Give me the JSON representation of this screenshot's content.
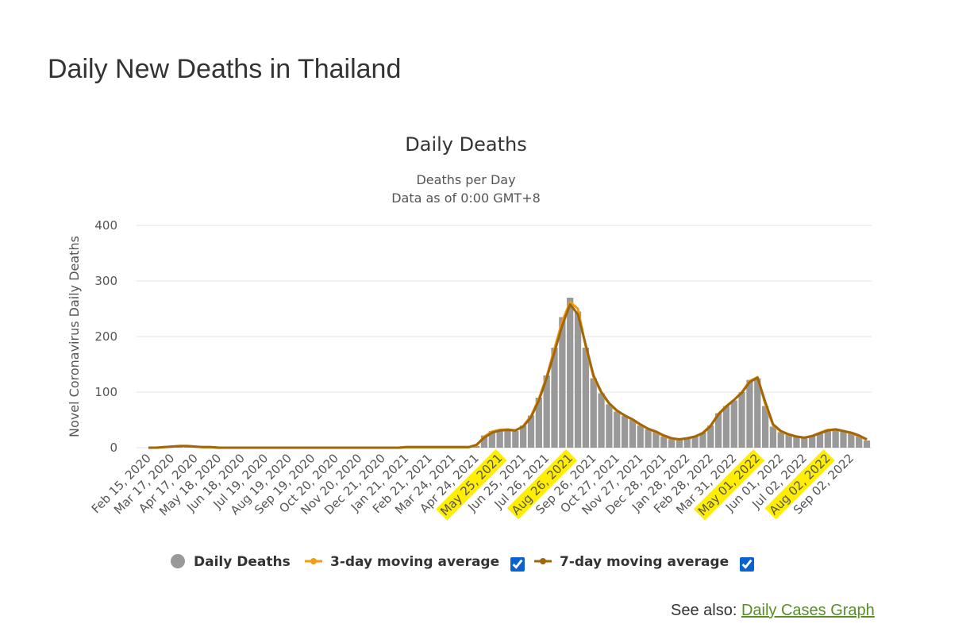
{
  "page_title": "Daily New Deaths in Thailand",
  "chart_data": {
    "type": "bar_line",
    "title": "Daily Deaths",
    "subtitle": [
      "Deaths per Day",
      "Data as of 0:00 GMT+8"
    ],
    "y_label": "Novel Coronavirus Daily Deaths",
    "categories": [
      "Feb 15, 2020",
      null,
      null,
      "Mar 17, 2020",
      null,
      null,
      "Apr 17, 2020",
      null,
      null,
      "May 18, 2020",
      null,
      null,
      "Jun 18, 2020",
      null,
      null,
      "Jul 19, 2020",
      null,
      null,
      "Aug 19, 2020",
      null,
      null,
      "Sep 19, 2020",
      null,
      null,
      "Oct 20, 2020",
      null,
      null,
      "Nov 20, 2020",
      null,
      null,
      "Dec 21, 2020",
      null,
      null,
      "Jan 21, 2021",
      null,
      null,
      "Feb 21, 2021",
      null,
      null,
      "Mar 24, 2021",
      null,
      null,
      "Apr 24, 2021",
      null,
      null,
      "May 25, 2021",
      null,
      null,
      "Jun 25, 2021",
      null,
      null,
      "Jul 26, 2021",
      null,
      null,
      "Aug 26, 2021",
      null,
      null,
      "Sep 26, 2021",
      null,
      null,
      "Oct 27, 2021",
      null,
      null,
      "Nov 27, 2021",
      null,
      null,
      "Dec 28, 2021",
      null,
      null,
      "Jan 28, 2022",
      null,
      null,
      "Feb 28, 2022",
      null,
      null,
      "Mar 31, 2022",
      null,
      null,
      "May 01, 2022",
      null,
      null,
      "Jun 01, 2022",
      null,
      null,
      "Jul 02, 2022",
      null,
      null,
      "Aug 02, 2022",
      null,
      null,
      "Sep 02, 2022",
      null,
      null
    ],
    "highlighted_categories": [
      "May 25, 2021",
      "Aug 26, 2021",
      "May 01, 2022",
      "Aug 02, 2022"
    ],
    "highlight_color": "#ffee00",
    "series": [
      {
        "name": "Daily Deaths",
        "kind": "bar",
        "color": "#999999",
        "values": [
          0,
          0,
          1,
          2,
          4,
          3,
          2,
          1,
          1,
          0,
          0,
          0,
          0,
          0,
          0,
          0,
          0,
          0,
          0,
          0,
          0,
          0,
          0,
          0,
          0,
          0,
          0,
          0,
          0,
          0,
          0,
          0,
          0,
          1,
          2,
          1,
          1,
          1,
          0,
          1,
          1,
          1,
          3,
          22,
          30,
          32,
          33,
          30,
          40,
          58,
          90,
          130,
          180,
          235,
          270,
          245,
          180,
          125,
          98,
          78,
          65,
          57,
          50,
          40,
          33,
          28,
          20,
          15,
          15,
          17,
          20,
          27,
          40,
          62,
          75,
          85,
          100,
          122,
          125,
          75,
          38,
          28,
          23,
          20,
          17,
          22,
          27,
          33,
          33,
          30,
          26,
          20,
          13
        ]
      },
      {
        "name": "3-day moving average",
        "kind": "line",
        "color": "#f39c12",
        "values": [
          0,
          0,
          1,
          2,
          3,
          3,
          2,
          1,
          1,
          0,
          0,
          0,
          0,
          0,
          0,
          0,
          0,
          0,
          0,
          0,
          0,
          0,
          0,
          0,
          0,
          0,
          0,
          0,
          0,
          0,
          0,
          0,
          0,
          1,
          1,
          1,
          1,
          1,
          1,
          1,
          1,
          1,
          4,
          20,
          29,
          32,
          33,
          31,
          39,
          57,
          88,
          128,
          178,
          228,
          262,
          250,
          182,
          127,
          99,
          79,
          66,
          58,
          50,
          41,
          34,
          28,
          21,
          16,
          15,
          17,
          20,
          27,
          40,
          61,
          75,
          86,
          100,
          120,
          127,
          78,
          40,
          29,
          23,
          20,
          18,
          21,
          27,
          32,
          33,
          30,
          26,
          21,
          14
        ]
      },
      {
        "name": "7-day moving average",
        "kind": "line",
        "color": "#a0660c",
        "values": [
          0,
          0,
          1,
          2,
          3,
          3,
          2,
          1,
          1,
          0,
          0,
          0,
          0,
          0,
          0,
          0,
          0,
          0,
          0,
          0,
          0,
          0,
          0,
          0,
          0,
          0,
          0,
          0,
          0,
          0,
          0,
          0,
          0,
          1,
          1,
          1,
          1,
          1,
          1,
          1,
          1,
          1,
          5,
          18,
          27,
          31,
          32,
          31,
          38,
          55,
          85,
          125,
          172,
          220,
          258,
          240,
          185,
          130,
          100,
          80,
          67,
          58,
          51,
          42,
          34,
          29,
          22,
          17,
          15,
          17,
          20,
          26,
          39,
          60,
          74,
          86,
          99,
          118,
          126,
          82,
          42,
          30,
          24,
          20,
          18,
          21,
          26,
          31,
          33,
          30,
          27,
          22,
          15
        ]
      }
    ],
    "ylim": [
      0,
      400
    ],
    "yticks": [
      0,
      100,
      200,
      300,
      400
    ],
    "grid": true
  },
  "footer": {
    "prefix": "See also:",
    "link": "Daily Cases Graph"
  }
}
